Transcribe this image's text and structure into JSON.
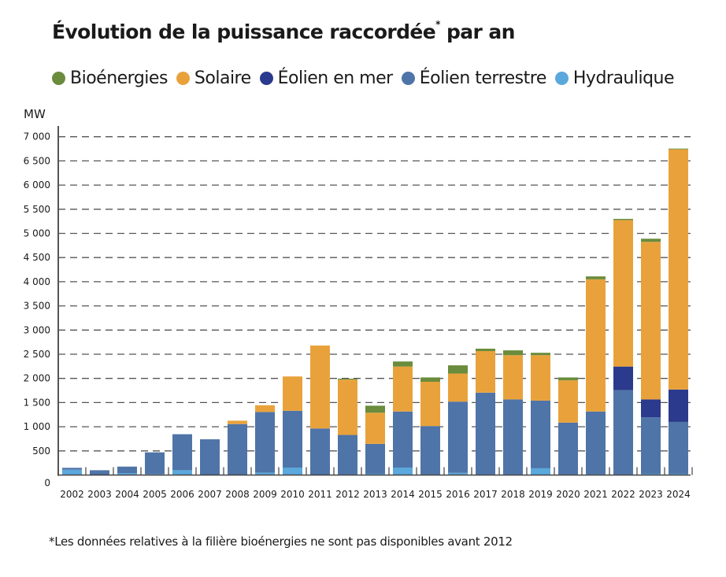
{
  "chart_data": {
    "type": "bar",
    "stacked": true,
    "title": "Évolution de la puissance raccordée",
    "title_suffix": "par an",
    "title_footnote_mark": "*",
    "ylabel": "MW",
    "xlabel": "",
    "ylim": [
      0,
      7000
    ],
    "yticks": [
      0,
      500,
      1000,
      1500,
      2000,
      2500,
      3000,
      3500,
      4000,
      4500,
      5000,
      5500,
      6000,
      6500,
      7000
    ],
    "ytick_labels": [
      "0",
      "500",
      "1 000",
      "1 500",
      "2 000",
      "2 500",
      "3 000",
      "3 500",
      "4 000",
      "4 500",
      "5 000",
      "5 500",
      "6 000",
      "6 500",
      "7 000"
    ],
    "grid": "horizontal dashed",
    "legend_position": "top",
    "categories": [
      "2002",
      "2003",
      "2004",
      "2005",
      "2006",
      "2007",
      "2008",
      "2009",
      "2010",
      "2011",
      "2012",
      "2013",
      "2014",
      "2015",
      "2016",
      "2017",
      "2018",
      "2019",
      "2020",
      "2021",
      "2022",
      "2023",
      "2024"
    ],
    "series": [
      {
        "name": "Hydraulique",
        "color": "#5aa8dc",
        "values": [
          110,
          0,
          40,
          20,
          100,
          0,
          0,
          50,
          155,
          0,
          10,
          25,
          155,
          10,
          45,
          10,
          10,
          140,
          10,
          15,
          10,
          25,
          25
        ]
      },
      {
        "name": "Éolien terrestre",
        "color": "#4f74a8",
        "values": [
          40,
          100,
          135,
          450,
          745,
          740,
          1055,
          1255,
          1175,
          965,
          820,
          620,
          1160,
          1005,
          1475,
          1695,
          1555,
          1400,
          1075,
          1300,
          1745,
          1170,
          1075
        ]
      },
      {
        "name": "Éolien en mer",
        "color": "#2b3a8c",
        "values": [
          0,
          0,
          0,
          0,
          0,
          0,
          0,
          0,
          0,
          0,
          0,
          0,
          0,
          0,
          0,
          0,
          0,
          0,
          0,
          0,
          490,
          370,
          670
        ]
      },
      {
        "name": "Solaire",
        "color": "#e9a23b",
        "values": [
          0,
          0,
          0,
          0,
          0,
          0,
          70,
          140,
          710,
          1715,
          1145,
          645,
          930,
          915,
          580,
          860,
          915,
          940,
          875,
          2735,
          3030,
          3260,
          4970
        ]
      },
      {
        "name": "Bioénergies",
        "color": "#6a8c3c",
        "values": [
          0,
          0,
          0,
          0,
          0,
          0,
          0,
          0,
          0,
          0,
          20,
          145,
          105,
          90,
          170,
          50,
          100,
          50,
          60,
          60,
          25,
          65,
          15
        ]
      }
    ],
    "legend_order": [
      "Bioénergies",
      "Solaire",
      "Éolien en mer",
      "Éolien terrestre",
      "Hydraulique"
    ],
    "footnote": "*Les données relatives à la filière bioénergies ne sont pas disponibles avant 2012"
  }
}
